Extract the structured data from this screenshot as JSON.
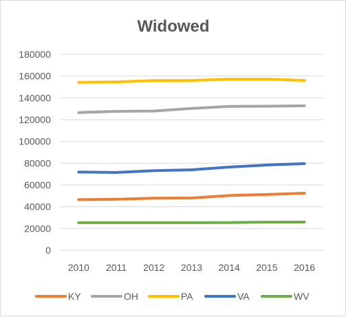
{
  "chart_data": {
    "type": "line",
    "title": "Widowed",
    "xlabel": "",
    "ylabel": "",
    "categories": [
      "2010",
      "2011",
      "2012",
      "2013",
      "2014",
      "2015",
      "2016"
    ],
    "ylim": [
      0,
      180000
    ],
    "yticks": [
      "0",
      "20000",
      "40000",
      "60000",
      "80000",
      "100000",
      "120000",
      "140000",
      "160000",
      "180000"
    ],
    "grid": true,
    "legend": "bottom",
    "series": [
      {
        "name": "KY",
        "color": "#ed7d31",
        "values": [
          46500,
          46800,
          47800,
          48000,
          50300,
          51200,
          52400
        ]
      },
      {
        "name": "OH",
        "color": "#a5a5a5",
        "values": [
          126500,
          127600,
          127900,
          130300,
          132200,
          132300,
          132700
        ]
      },
      {
        "name": "PA",
        "color": "#ffc000",
        "values": [
          154200,
          154700,
          155900,
          156000,
          157200,
          157200,
          156000
        ]
      },
      {
        "name": "VA",
        "color": "#4472c4",
        "values": [
          71900,
          71400,
          73100,
          73900,
          76400,
          78300,
          79600
        ]
      },
      {
        "name": "WV",
        "color": "#70ad47",
        "values": [
          25300,
          25300,
          25300,
          25300,
          25400,
          25800,
          25900
        ]
      }
    ]
  }
}
